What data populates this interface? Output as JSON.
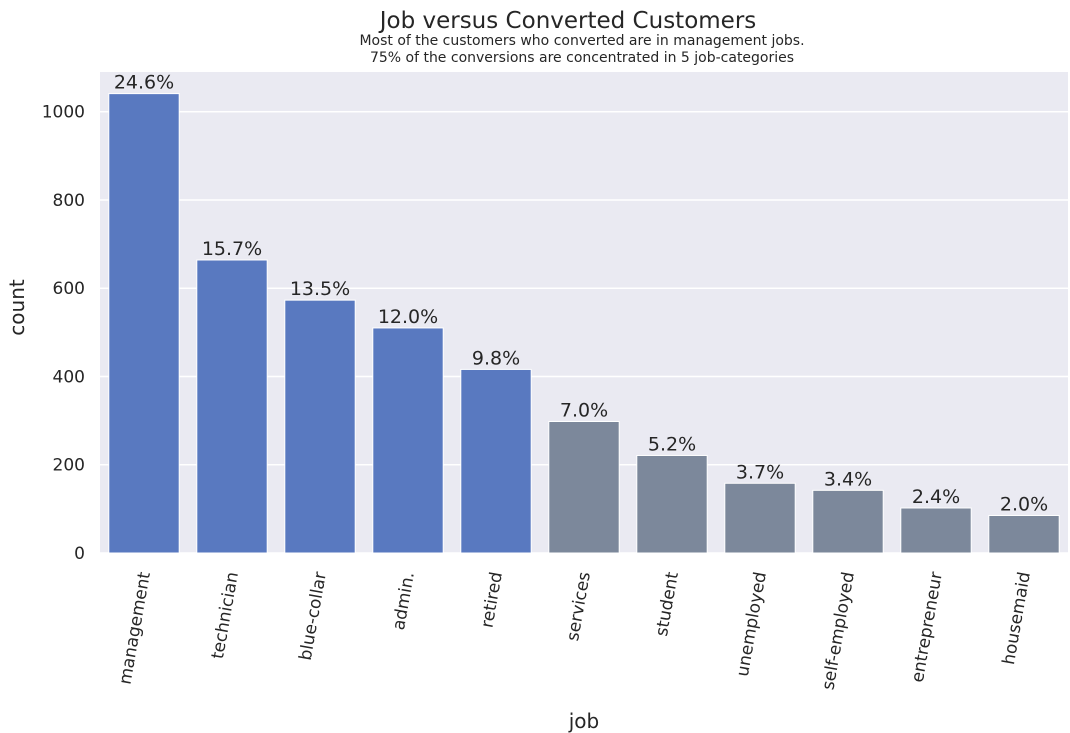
{
  "chart_data": {
    "type": "bar",
    "title": "Job versus Converted Customers",
    "subtitle_lines": [
      "Most of the customers who converted are in management jobs.",
      "75% of the conversions are concentrated in 5 job-categories"
    ],
    "xlabel": "job",
    "ylabel": "count",
    "ylim": [
      0,
      1090
    ],
    "yticks": [
      0,
      200,
      400,
      600,
      800,
      1000
    ],
    "grid": true,
    "categories": [
      "management",
      "technician",
      "blue-collar",
      "admin.",
      "retired",
      "services",
      "student",
      "unemployed",
      "self-employed",
      "entrepreneur",
      "housemaid"
    ],
    "values": [
      1041,
      664,
      573,
      510,
      416,
      298,
      221,
      158,
      142,
      102,
      85
    ],
    "labels": [
      "24.6%",
      "15.7%",
      "13.5%",
      "12.0%",
      "9.8%",
      "7.0%",
      "5.2%",
      "3.7%",
      "3.4%",
      "2.4%",
      "2.0%"
    ],
    "colors": [
      "#5979c0",
      "#5979c0",
      "#5979c0",
      "#5979c0",
      "#5979c0",
      "#7c889b",
      "#7c889b",
      "#7c889b",
      "#7c889b",
      "#7c889b",
      "#7c889b"
    ],
    "plot_background": "#eaeaf2",
    "grid_color": "#ffffff"
  }
}
